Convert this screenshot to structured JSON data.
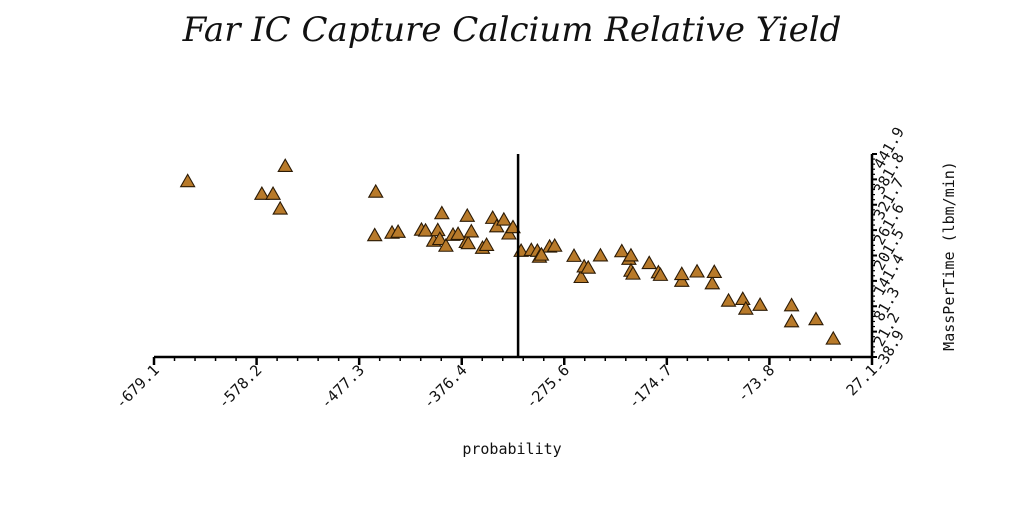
{
  "chart_data": {
    "type": "scatter",
    "title": "Far IC Capture Calcium Relative Yield",
    "xlabel": "probability",
    "ylabel": "MassPerTime (lbm/min)",
    "xlim": [
      -679.1,
      27.1
    ],
    "ylim": [
      -38.9,
      441.9
    ],
    "x_ticks": [
      -679.1,
      -578.2,
      -477.3,
      -376.4,
      -275.6,
      -174.7,
      -73.8,
      27.1
    ],
    "x_tick_labels": [
      "-679.1",
      "-578.2",
      "-477.3",
      "-376.4",
      "-275.6",
      "-174.7",
      "-73.8",
      "27.1"
    ],
    "y_ticks": [
      -38.9,
      21.2,
      81.3,
      141.4,
      201.5,
      261.6,
      321.7,
      381.8,
      441.9
    ],
    "y_tick_labels": [
      "-38.9",
      "21.2",
      "81.3",
      "141.4",
      "201.5",
      "261.6",
      "321.7",
      "381.8",
      "441.9"
    ],
    "vline_x": -321,
    "marker": "triangle",
    "marker_color": "#b87a2a",
    "marker_edge": "#2b1a05",
    "legend": "none",
    "grid": false,
    "points": [
      [
        -646,
        377
      ],
      [
        -573,
        347
      ],
      [
        -562,
        347
      ],
      [
        -555,
        312
      ],
      [
        -550,
        413
      ],
      [
        -462,
        249
      ],
      [
        -461,
        352
      ],
      [
        -445,
        255
      ],
      [
        -439,
        257
      ],
      [
        -416,
        262
      ],
      [
        -412,
        260
      ],
      [
        -404,
        236
      ],
      [
        -400,
        261
      ],
      [
        -398,
        240
      ],
      [
        -396,
        301
      ],
      [
        -392,
        224
      ],
      [
        -385,
        250
      ],
      [
        -380,
        252
      ],
      [
        -372,
        233
      ],
      [
        -371,
        295
      ],
      [
        -370,
        230
      ],
      [
        -367,
        258
      ],
      [
        -356,
        219
      ],
      [
        -352,
        226
      ],
      [
        -346,
        290
      ],
      [
        -342,
        270
      ],
      [
        -335,
        286
      ],
      [
        -330,
        253
      ],
      [
        -326,
        268
      ],
      [
        -318,
        212
      ],
      [
        -308,
        214
      ],
      [
        -302,
        212
      ],
      [
        -290,
        222
      ],
      [
        -285,
        224
      ],
      [
        -300,
        198
      ],
      [
        -298,
        203
      ],
      [
        -266,
        200
      ],
      [
        -259,
        150
      ],
      [
        -256,
        175
      ],
      [
        -252,
        172
      ],
      [
        -240,
        201
      ],
      [
        -219,
        211
      ],
      [
        -212,
        193
      ],
      [
        -210,
        201
      ],
      [
        -210,
        165
      ],
      [
        -208,
        158
      ],
      [
        -192,
        183
      ],
      [
        -183,
        161
      ],
      [
        -181,
        155
      ],
      [
        -160,
        141
      ],
      [
        -160,
        157
      ],
      [
        -145,
        163
      ],
      [
        -130,
        135
      ],
      [
        -128,
        162
      ],
      [
        -114,
        94
      ],
      [
        -100,
        98
      ],
      [
        -97,
        75
      ],
      [
        -83,
        84
      ],
      [
        -52,
        83
      ],
      [
        -52,
        45
      ],
      [
        -28,
        50
      ],
      [
        -11,
        4
      ]
    ]
  }
}
